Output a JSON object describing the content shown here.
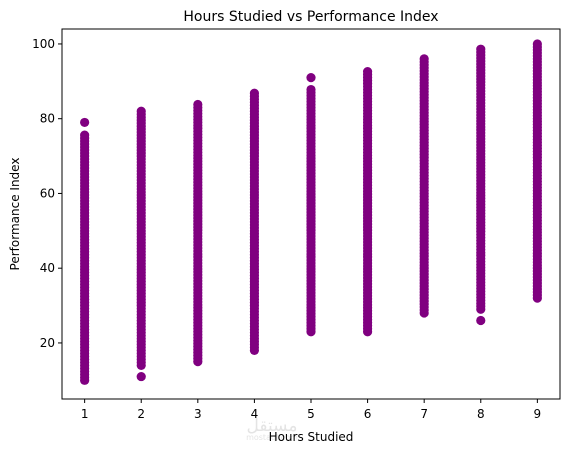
{
  "chart_data": {
    "type": "scatter",
    "title": "Hours Studied vs Performance Index",
    "xlabel": "Hours Studied",
    "ylabel": "Performance Index",
    "xlim": [
      0.6,
      9.4
    ],
    "ylim": [
      5,
      104
    ],
    "xticks": [
      1,
      2,
      3,
      4,
      5,
      6,
      7,
      8,
      9
    ],
    "yticks": [
      20,
      40,
      60,
      80,
      100
    ],
    "grid": false,
    "marker_color": "#800080",
    "columns": [
      {
        "x": 1,
        "y_min": 10,
        "y_max": 79,
        "dense_max": 76,
        "outliers": [
          79
        ]
      },
      {
        "x": 2,
        "y_min": 11,
        "y_max": 82,
        "dense_max": 82,
        "dense_min": 14,
        "outliers": [
          11
        ]
      },
      {
        "x": 3,
        "y_min": 15,
        "y_max": 84,
        "dense_max": 84,
        "dense_min": 15,
        "outliers": []
      },
      {
        "x": 4,
        "y_min": 18,
        "y_max": 87,
        "dense_max": 87,
        "dense_min": 18,
        "outliers": []
      },
      {
        "x": 5,
        "y_min": 23,
        "y_max": 91,
        "dense_max": 88,
        "dense_min": 23,
        "outliers": [
          91
        ]
      },
      {
        "x": 6,
        "y_min": 23,
        "y_max": 93,
        "dense_max": 93,
        "dense_min": 23,
        "outliers": []
      },
      {
        "x": 7,
        "y_min": 28,
        "y_max": 96,
        "dense_max": 96,
        "dense_min": 28,
        "outliers": []
      },
      {
        "x": 8,
        "y_min": 26,
        "y_max": 99,
        "dense_max": 99,
        "dense_min": 29,
        "outliers": [
          26
        ]
      },
      {
        "x": 9,
        "y_min": 32,
        "y_max": 100,
        "dense_max": 100,
        "dense_min": 32,
        "outliers": []
      }
    ]
  },
  "watermark": {
    "arabic": "مستقل",
    "latin": "mostaql.com"
  }
}
